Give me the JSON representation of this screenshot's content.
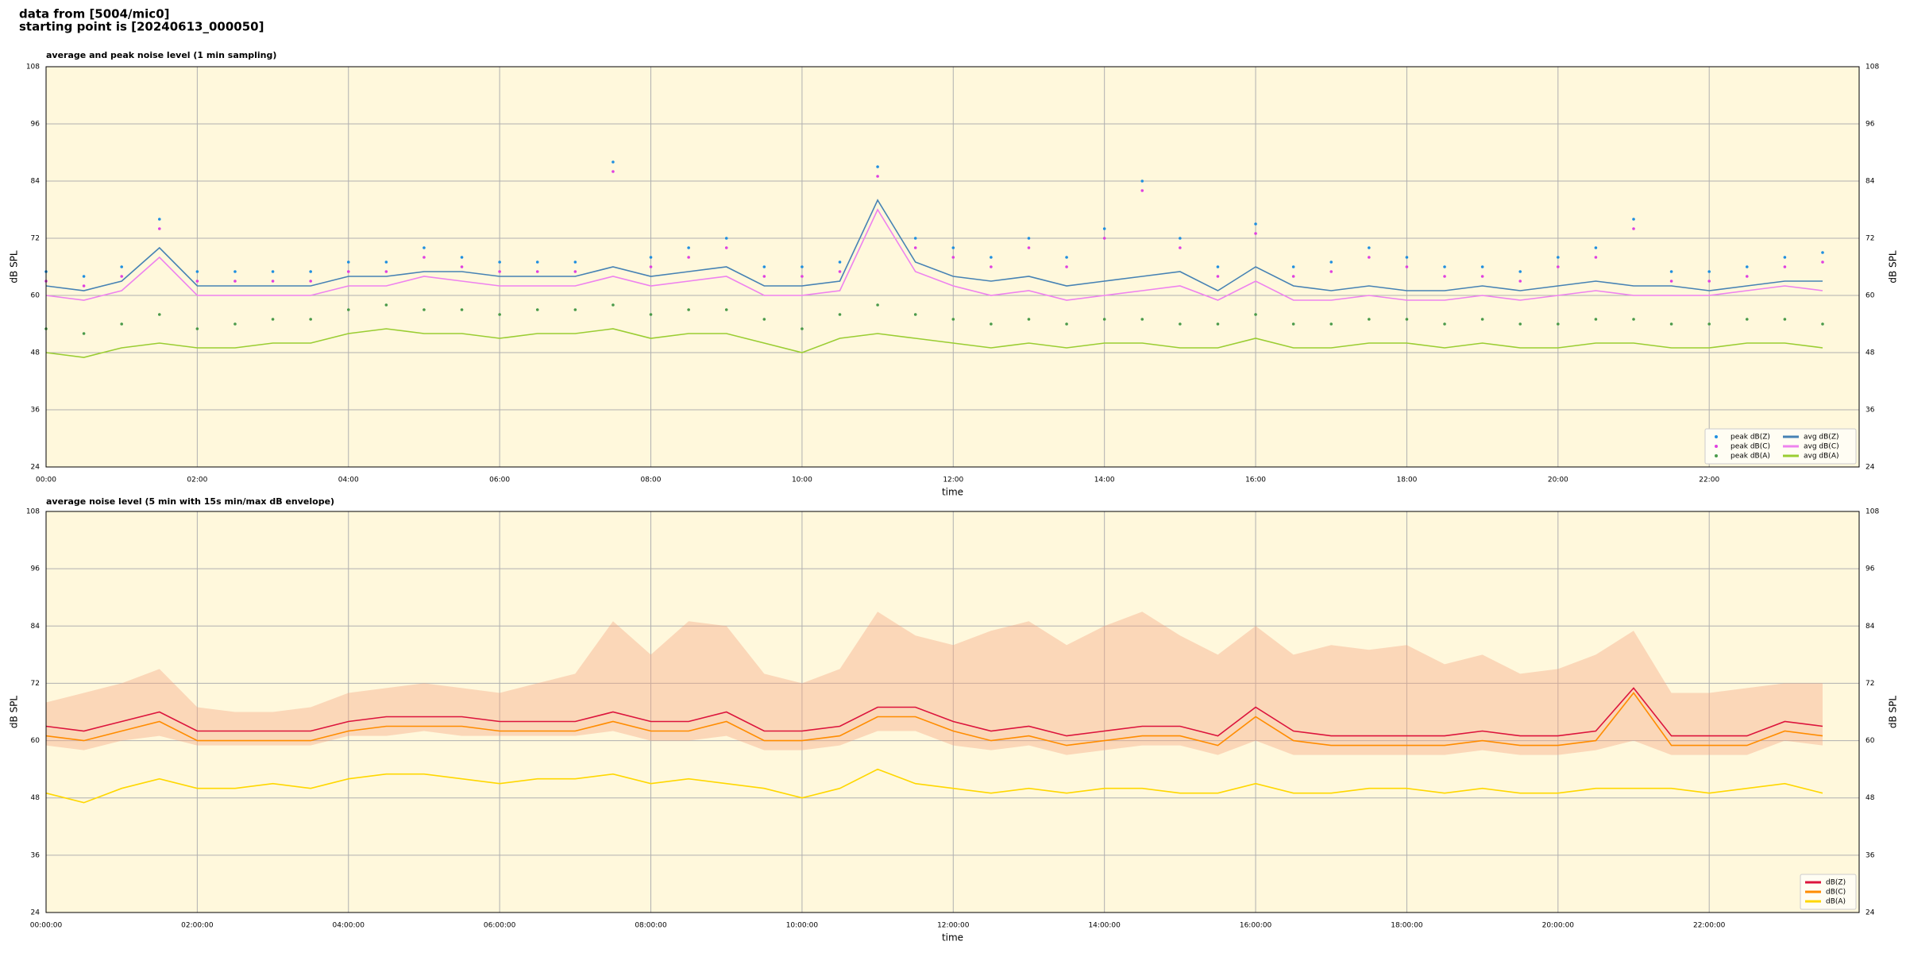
{
  "header": {
    "lines": [
      "data from [5004/mic0]",
      "starting point is [20240613_000050]"
    ]
  },
  "chart_data": [
    {
      "type": "line",
      "title": "average and peak noise level (1 min sampling)",
      "xlabel": "time",
      "ylabel": "dB SPL",
      "x": [
        "00:00",
        "00:30",
        "01:00",
        "01:30",
        "02:00",
        "02:30",
        "03:00",
        "03:30",
        "04:00",
        "04:30",
        "05:00",
        "05:30",
        "06:00",
        "06:30",
        "07:00",
        "07:30",
        "08:00",
        "08:30",
        "09:00",
        "09:30",
        "10:00",
        "10:30",
        "11:00",
        "11:30",
        "12:00",
        "12:30",
        "13:00",
        "13:30",
        "14:00",
        "14:30",
        "15:00",
        "15:30",
        "16:00",
        "16:30",
        "17:00",
        "17:30",
        "18:00",
        "18:30",
        "19:00",
        "19:30",
        "20:00",
        "20:30",
        "21:00",
        "21:30",
        "22:00",
        "22:30",
        "23:00",
        "23:30"
      ],
      "xlim": [
        "00:00",
        "23:59"
      ],
      "xticks": [
        "00:00",
        "02:00",
        "04:00",
        "06:00",
        "08:00",
        "10:00",
        "12:00",
        "14:00",
        "16:00",
        "18:00",
        "20:00",
        "22:00"
      ],
      "ylim": [
        24,
        108
      ],
      "yticks": [
        24,
        36,
        48,
        60,
        72,
        84,
        96,
        108
      ],
      "grid": true,
      "legend": "lower right",
      "background": "#fff8dc",
      "series": [
        {
          "name": "peak dB(Z)",
          "style": "dots",
          "color": "#1f8fe0",
          "values": [
            65,
            64,
            66,
            76,
            65,
            65,
            65,
            65,
            67,
            67,
            70,
            68,
            67,
            67,
            67,
            88,
            68,
            70,
            72,
            66,
            66,
            67,
            87,
            72,
            70,
            68,
            72,
            68,
            74,
            84,
            72,
            66,
            75,
            66,
            67,
            70,
            68,
            66,
            66,
            65,
            68,
            70,
            76,
            65,
            65,
            66,
            68,
            69
          ]
        },
        {
          "name": "peak dB(C)",
          "style": "dots",
          "color": "#e040e0",
          "values": [
            63,
            62,
            64,
            74,
            63,
            63,
            63,
            63,
            65,
            65,
            68,
            66,
            65,
            65,
            65,
            86,
            66,
            68,
            70,
            64,
            64,
            65,
            85,
            70,
            68,
            66,
            70,
            66,
            72,
            82,
            70,
            64,
            73,
            64,
            65,
            68,
            66,
            64,
            64,
            63,
            66,
            68,
            74,
            63,
            63,
            64,
            66,
            67
          ]
        },
        {
          "name": "peak dB(A)",
          "style": "dots",
          "color": "#4a9a4a",
          "values": [
            53,
            52,
            54,
            56,
            53,
            54,
            55,
            55,
            57,
            58,
            57,
            57,
            56,
            57,
            57,
            58,
            56,
            57,
            57,
            55,
            53,
            56,
            58,
            56,
            55,
            54,
            55,
            54,
            55,
            55,
            54,
            54,
            56,
            54,
            54,
            55,
            55,
            54,
            55,
            54,
            54,
            55,
            55,
            54,
            54,
            55,
            55,
            54
          ]
        },
        {
          "name": "avg dB(Z)",
          "style": "line",
          "color": "#4682b4",
          "values": [
            62,
            61,
            63,
            70,
            62,
            62,
            62,
            62,
            64,
            64,
            65,
            65,
            64,
            64,
            64,
            66,
            64,
            65,
            66,
            62,
            62,
            63,
            80,
            67,
            64,
            63,
            64,
            62,
            63,
            64,
            65,
            61,
            66,
            62,
            61,
            62,
            61,
            61,
            62,
            61,
            62,
            63,
            62,
            62,
            61,
            62,
            63,
            63
          ]
        },
        {
          "name": "avg dB(C)",
          "style": "line",
          "color": "#ee82ee",
          "values": [
            60,
            59,
            61,
            68,
            60,
            60,
            60,
            60,
            62,
            62,
            64,
            63,
            62,
            62,
            62,
            64,
            62,
            63,
            64,
            60,
            60,
            61,
            78,
            65,
            62,
            60,
            61,
            59,
            60,
            61,
            62,
            59,
            63,
            59,
            59,
            60,
            59,
            59,
            60,
            59,
            60,
            61,
            60,
            60,
            60,
            61,
            62,
            61
          ]
        },
        {
          "name": "avg dB(A)",
          "style": "line",
          "color": "#9acd32",
          "values": [
            48,
            47,
            49,
            50,
            49,
            49,
            50,
            50,
            52,
            53,
            52,
            52,
            51,
            52,
            52,
            53,
            51,
            52,
            52,
            50,
            48,
            51,
            52,
            51,
            50,
            49,
            50,
            49,
            50,
            50,
            49,
            49,
            51,
            49,
            49,
            50,
            50,
            49,
            50,
            49,
            49,
            50,
            50,
            49,
            49,
            50,
            50,
            49
          ]
        }
      ]
    },
    {
      "type": "line",
      "title": "average noise level (5 min with 15s min/max dB envelope)",
      "xlabel": "time",
      "ylabel": "dB SPL",
      "x": [
        "00:00:00",
        "00:30:00",
        "01:00:00",
        "01:30:00",
        "02:00:00",
        "02:30:00",
        "03:00:00",
        "03:30:00",
        "04:00:00",
        "04:30:00",
        "05:00:00",
        "05:30:00",
        "06:00:00",
        "06:30:00",
        "07:00:00",
        "07:30:00",
        "08:00:00",
        "08:30:00",
        "09:00:00",
        "09:30:00",
        "10:00:00",
        "10:30:00",
        "11:00:00",
        "11:30:00",
        "12:00:00",
        "12:30:00",
        "13:00:00",
        "13:30:00",
        "14:00:00",
        "14:30:00",
        "15:00:00",
        "15:30:00",
        "16:00:00",
        "16:30:00",
        "17:00:00",
        "17:30:00",
        "18:00:00",
        "18:30:00",
        "19:00:00",
        "19:30:00",
        "20:00:00",
        "20:30:00",
        "21:00:00",
        "21:30:00",
        "22:00:00",
        "22:30:00",
        "23:00:00",
        "23:30:00"
      ],
      "xlim": [
        "00:00:00",
        "23:59:00"
      ],
      "xticks": [
        "00:00:00",
        "02:00:00",
        "04:00:00",
        "06:00:00",
        "08:00:00",
        "10:00:00",
        "12:00:00",
        "14:00:00",
        "16:00:00",
        "18:00:00",
        "20:00:00",
        "22:00:00"
      ],
      "ylim": [
        24,
        108
      ],
      "yticks": [
        24,
        36,
        48,
        60,
        72,
        84,
        96,
        108
      ],
      "grid": true,
      "legend": "lower right",
      "background": "#fff8dc",
      "envelope": {
        "color": "#f4a582",
        "upper": [
          68,
          70,
          72,
          75,
          67,
          66,
          66,
          67,
          70,
          71,
          72,
          71,
          70,
          72,
          74,
          85,
          78,
          85,
          84,
          74,
          72,
          75,
          87,
          82,
          80,
          83,
          85,
          80,
          84,
          87,
          82,
          78,
          84,
          78,
          80,
          79,
          80,
          76,
          78,
          74,
          75,
          78,
          83,
          70,
          70,
          71,
          72,
          72
        ],
        "lower": [
          59,
          58,
          60,
          61,
          59,
          59,
          59,
          59,
          61,
          61,
          62,
          61,
          61,
          61,
          61,
          62,
          60,
          60,
          61,
          58,
          58,
          59,
          62,
          62,
          59,
          58,
          59,
          57,
          58,
          59,
          59,
          57,
          60,
          57,
          57,
          57,
          57,
          57,
          58,
          57,
          57,
          58,
          60,
          57,
          57,
          57,
          60,
          59
        ]
      },
      "series": [
        {
          "name": "dB(Z)",
          "style": "line",
          "color": "#dc143c",
          "values": [
            63,
            62,
            64,
            66,
            62,
            62,
            62,
            62,
            64,
            65,
            65,
            65,
            64,
            64,
            64,
            66,
            64,
            64,
            66,
            62,
            62,
            63,
            67,
            67,
            64,
            62,
            63,
            61,
            62,
            63,
            63,
            61,
            67,
            62,
            61,
            61,
            61,
            61,
            62,
            61,
            61,
            62,
            71,
            61,
            61,
            61,
            64,
            63
          ]
        },
        {
          "name": "dB(C)",
          "style": "line",
          "color": "#ff8c00",
          "values": [
            61,
            60,
            62,
            64,
            60,
            60,
            60,
            60,
            62,
            63,
            63,
            63,
            62,
            62,
            62,
            64,
            62,
            62,
            64,
            60,
            60,
            61,
            65,
            65,
            62,
            60,
            61,
            59,
            60,
            61,
            61,
            59,
            65,
            60,
            59,
            59,
            59,
            59,
            60,
            59,
            59,
            60,
            70,
            59,
            59,
            59,
            62,
            61
          ]
        },
        {
          "name": "dB(A)",
          "style": "line",
          "color": "#ffd700",
          "values": [
            49,
            47,
            50,
            52,
            50,
            50,
            51,
            50,
            52,
            53,
            53,
            52,
            51,
            52,
            52,
            53,
            51,
            52,
            51,
            50,
            48,
            50,
            54,
            51,
            50,
            49,
            50,
            49,
            50,
            50,
            49,
            49,
            51,
            49,
            49,
            50,
            50,
            49,
            50,
            49,
            49,
            50,
            50,
            50,
            49,
            50,
            51,
            49
          ]
        }
      ]
    }
  ]
}
